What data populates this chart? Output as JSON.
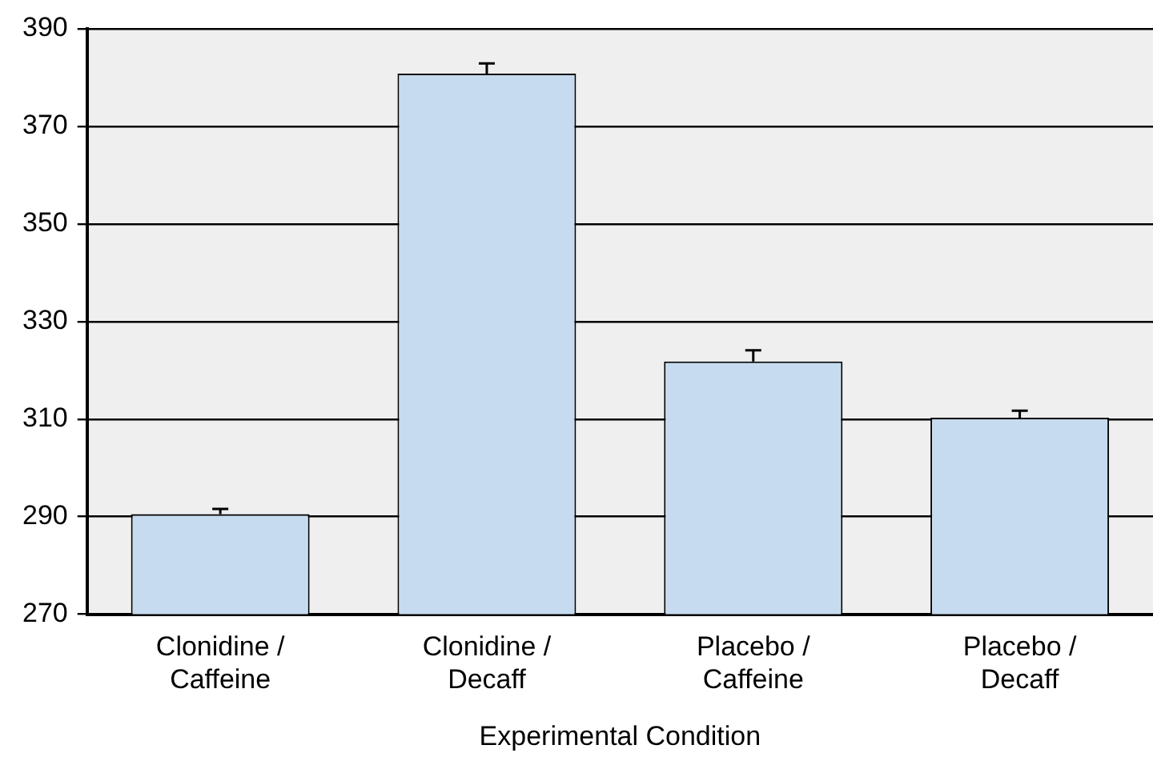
{
  "chart_data": {
    "type": "bar",
    "xlabel": "Experimental Condition",
    "categories": [
      "Clonidine / Caffeine",
      "Clonidine / Decaff",
      "Placebo / Caffeine",
      "Placebo / Decaff"
    ],
    "values": [
      290.5,
      380.8,
      321.8,
      310.3
    ],
    "errors": [
      1.1,
      2.1,
      2.3,
      1.4
    ],
    "color": "#c6dbef",
    "ylim": [
      270,
      390
    ],
    "yticks": [
      270,
      290,
      310,
      330,
      350,
      370,
      390
    ],
    "grid": "y",
    "legend": false
  }
}
